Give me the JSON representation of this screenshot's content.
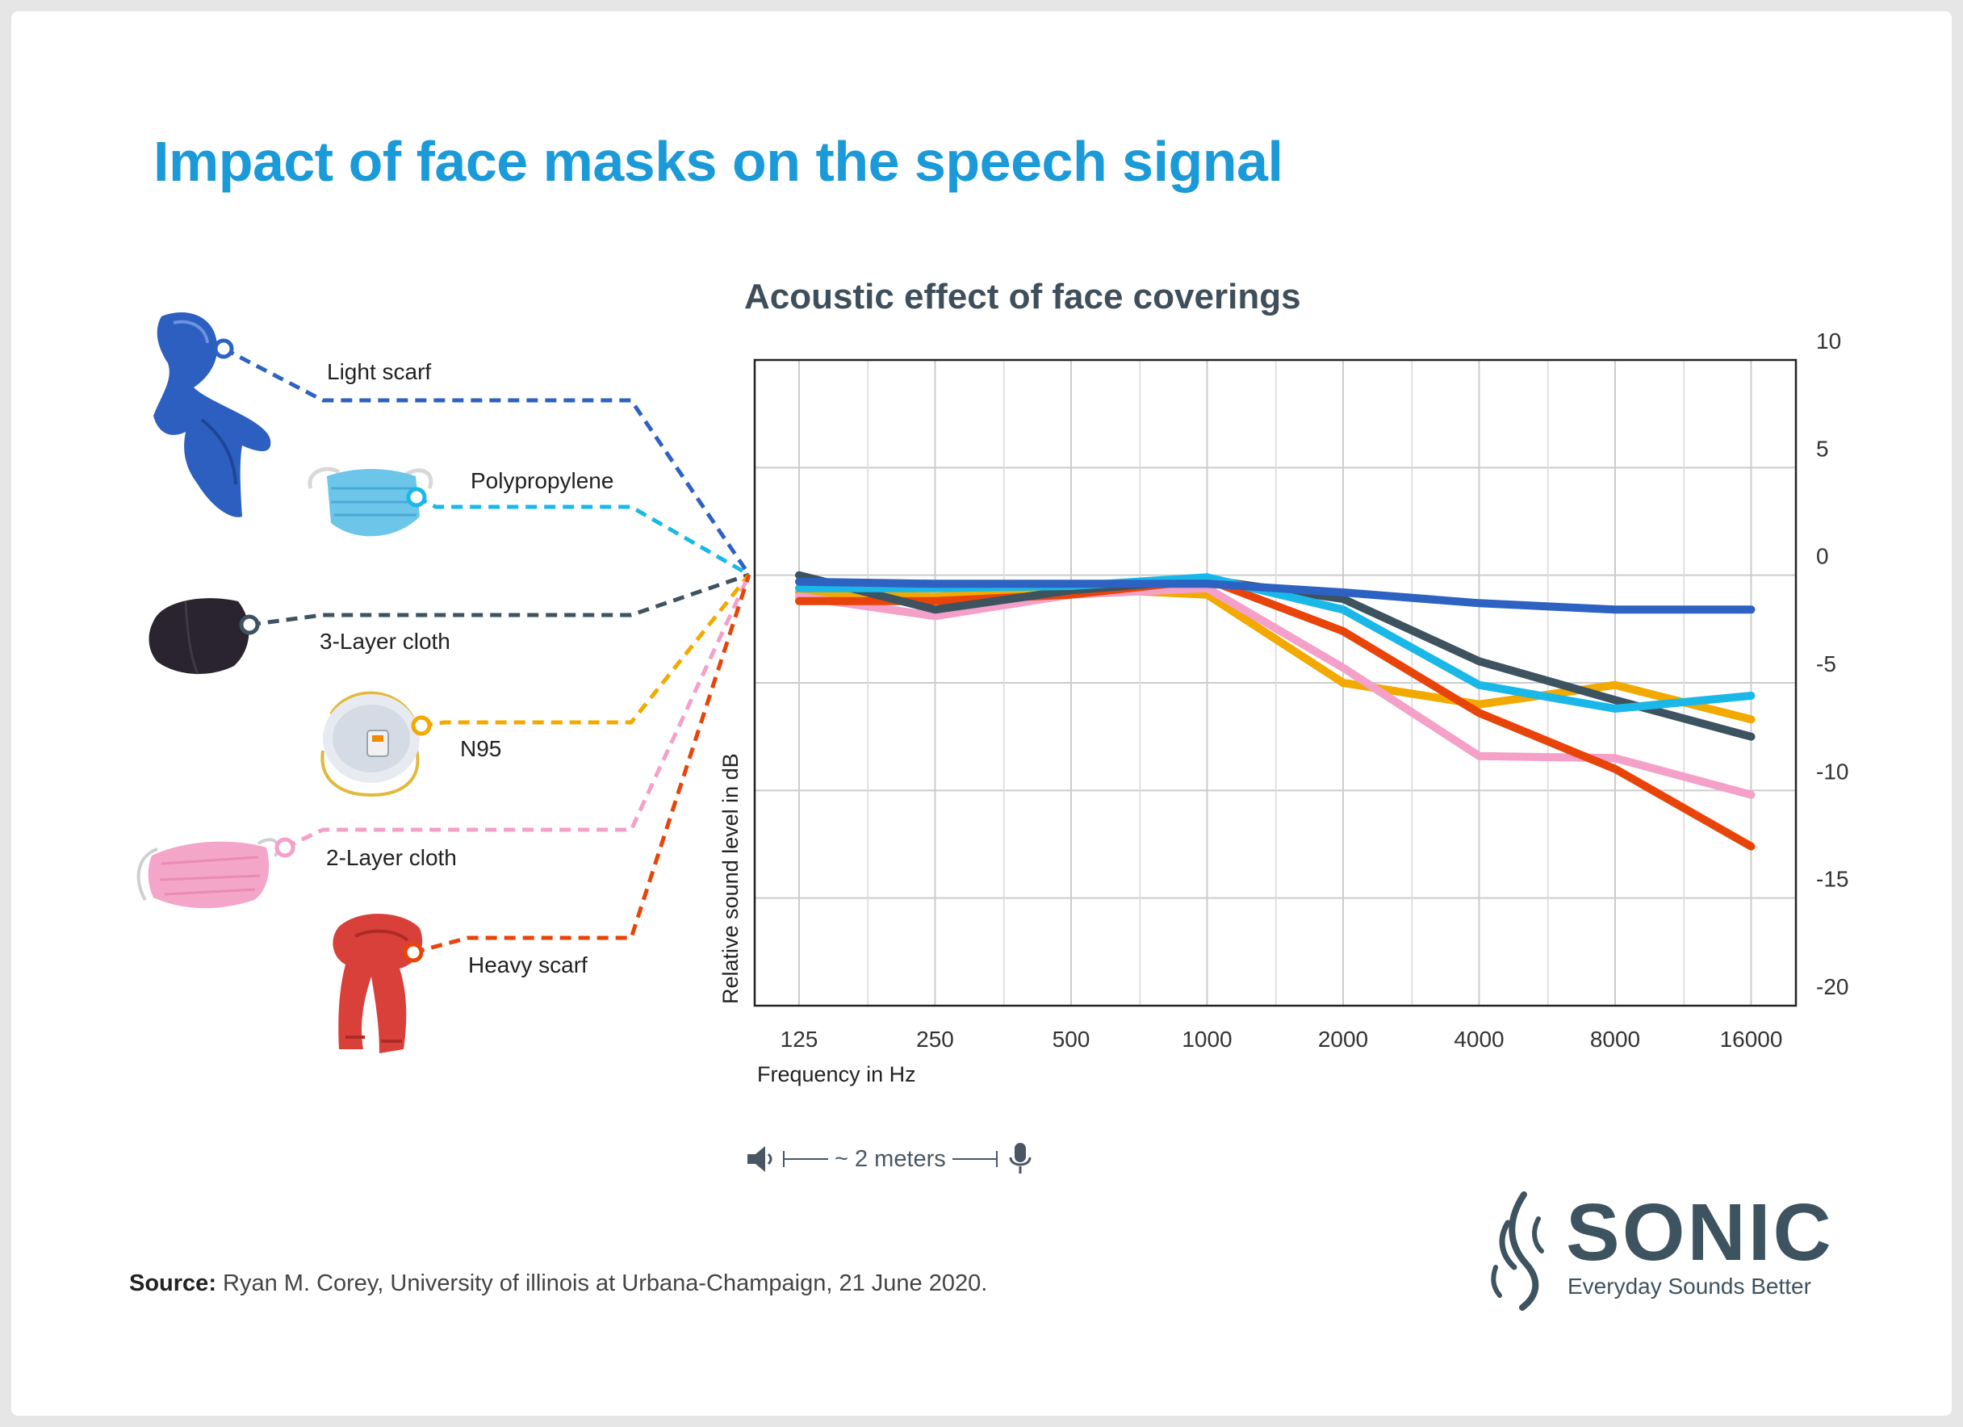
{
  "title": "Impact of face masks on the speech signal",
  "chart_title": "Acoustic effect of face coverings",
  "distance_label": "~ 2 meters",
  "source_label": "Source:",
  "source_text": "Ryan M. Corey, University of illinois at Urbana-Champaign, 21 June 2020.",
  "logo": {
    "name": "SONIC",
    "tagline": "Everyday Sounds Better"
  },
  "chart_data": {
    "type": "line",
    "title": "Acoustic effect of face coverings",
    "xlabel": "Frequency in Hz",
    "ylabel": "Relative sound level in dB",
    "categories": [
      "125",
      "250",
      "500",
      "1000",
      "2000",
      "4000",
      "8000",
      "16000"
    ],
    "yticks": [
      "10",
      "5",
      "0",
      "-5",
      "-10",
      "-15",
      "-20"
    ],
    "ylim": [
      -20,
      10
    ],
    "grid": true,
    "y_axis_side": "right",
    "series": [
      {
        "name": "N95",
        "color": "#f2a900",
        "values": [
          -0.8,
          -1.0,
          -0.6,
          -0.9,
          -5.0,
          -6.0,
          -5.1,
          -6.7
        ]
      },
      {
        "name": "2-Layer cloth",
        "color": "#f4a0c8",
        "values": [
          -1.0,
          -1.9,
          -0.9,
          -0.6,
          -4.3,
          -8.4,
          -8.5,
          -10.2
        ]
      },
      {
        "name": "Heavy scarf",
        "color": "#e8440a",
        "values": [
          -1.2,
          -1.2,
          -0.9,
          -0.2,
          -2.6,
          -6.4,
          -9.0,
          -12.6
        ]
      },
      {
        "name": "3-Layer cloth",
        "color": "#3e5360",
        "values": [
          0.0,
          -1.6,
          -0.7,
          -0.2,
          -1.1,
          -4.0,
          -5.8,
          -7.5
        ]
      },
      {
        "name": "Polypropylene",
        "color": "#1ab8e8",
        "values": [
          -0.6,
          -0.6,
          -0.5,
          -0.1,
          -1.6,
          -5.1,
          -6.2,
          -5.6
        ]
      },
      {
        "name": "Light scarf",
        "color": "#2d62c2",
        "values": [
          -0.3,
          -0.4,
          -0.4,
          -0.4,
          -0.8,
          -1.3,
          -1.6,
          -1.6
        ]
      }
    ],
    "legend": [
      {
        "name": "Light scarf",
        "color": "#2d62c2",
        "icon": "light-scarf-icon"
      },
      {
        "name": "Polypropylene",
        "color": "#1ab8e8",
        "icon": "surgical-mask-icon"
      },
      {
        "name": "3-Layer cloth",
        "color": "#3e5360",
        "icon": "cloth-mask-icon"
      },
      {
        "name": "N95",
        "color": "#f2a900",
        "icon": "n95-mask-icon"
      },
      {
        "name": "2-Layer cloth",
        "color": "#f4a0c8",
        "icon": "pink-cloth-mask-icon"
      },
      {
        "name": "Heavy scarf",
        "color": "#e8440a",
        "icon": "heavy-scarf-icon"
      }
    ]
  }
}
